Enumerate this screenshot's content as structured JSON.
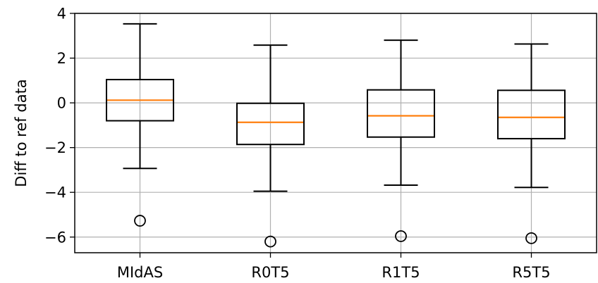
{
  "chart_data": {
    "type": "box",
    "title": "",
    "xlabel": "",
    "ylabel": "Diff to ref data",
    "ylim": [
      -6.7,
      4.0
    ],
    "yticks": [
      4,
      2,
      0,
      -2,
      -4,
      -6
    ],
    "ytick_labels": [
      "4",
      "2",
      "0",
      "−2",
      "−4",
      "−6"
    ],
    "grid": true,
    "categories": [
      "MIdAS",
      "R0T5",
      "R1T5",
      "R5T5"
    ],
    "boxes": [
      {
        "label": "MIdAS",
        "whisker_low": -2.93,
        "q1": -0.8,
        "median": 0.12,
        "q3": 1.04,
        "whisker_high": 3.53,
        "outliers": [
          -5.27
        ]
      },
      {
        "label": "R0T5",
        "whisker_low": -3.95,
        "q1": -1.86,
        "median": -0.87,
        "q3": -0.02,
        "whisker_high": 2.58,
        "outliers": [
          -6.2
        ]
      },
      {
        "label": "R1T5",
        "whisker_low": -3.68,
        "q1": -1.53,
        "median": -0.58,
        "q3": 0.58,
        "whisker_high": 2.8,
        "outliers": [
          -5.96
        ]
      },
      {
        "label": "R5T5",
        "whisker_low": -3.78,
        "q1": -1.6,
        "median": -0.65,
        "q3": 0.56,
        "whisker_high": 2.63,
        "outliers": [
          -6.05
        ]
      }
    ],
    "colors": {
      "box": "#000000",
      "median": "#ff7f0e",
      "grid": "#b0b0b0"
    }
  }
}
